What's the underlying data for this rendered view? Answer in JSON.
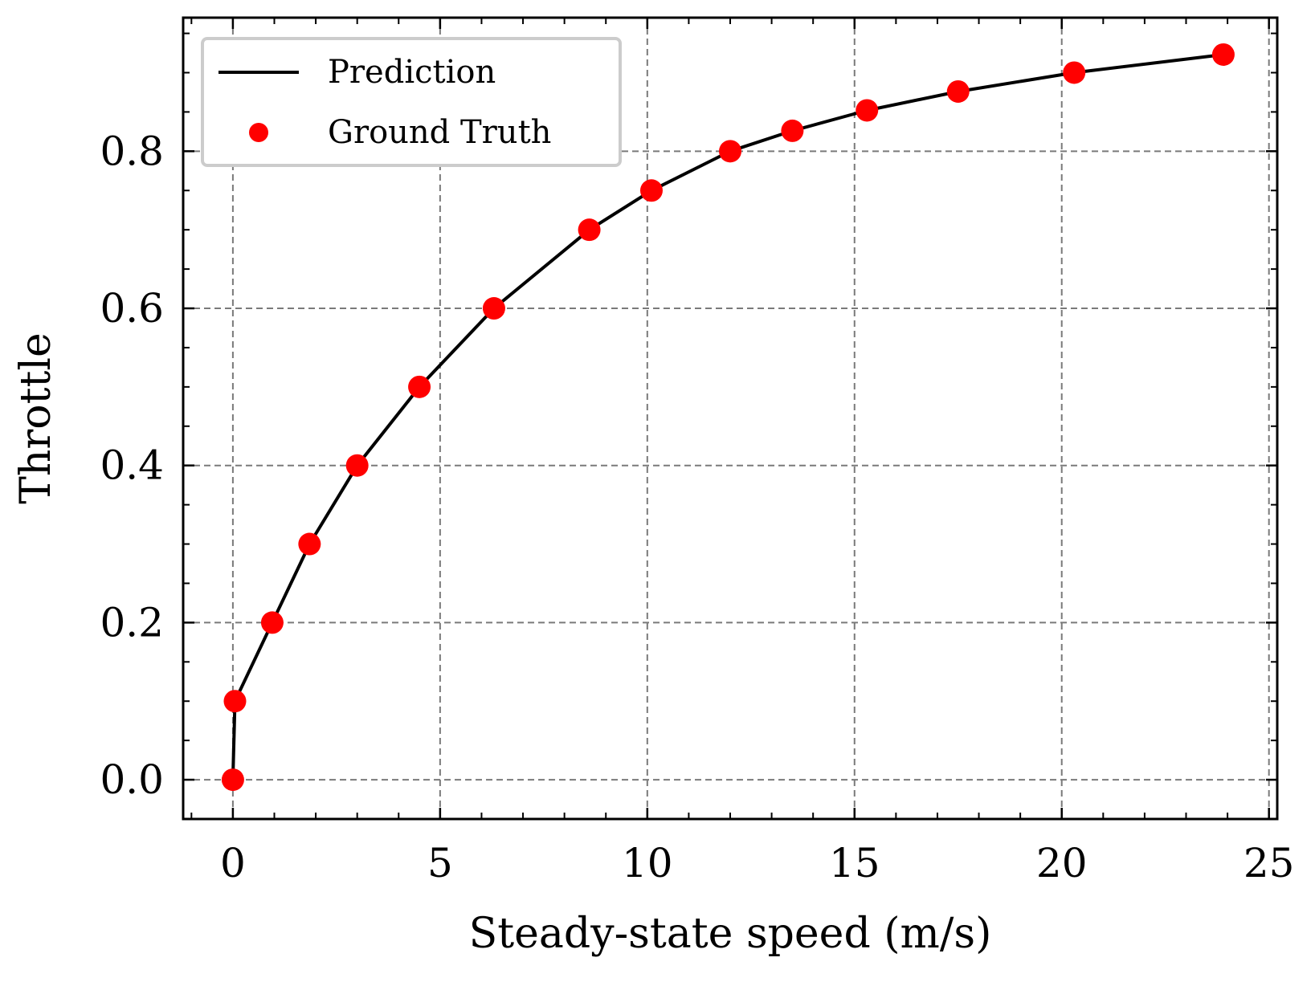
{
  "chart_data": {
    "type": "line",
    "xlabel": "Steady-state speed (m/s)",
    "ylabel": "Throttle",
    "xlim": [
      -1.2,
      25.2
    ],
    "ylim": [
      -0.05,
      0.97
    ],
    "x_ticks": [
      0,
      5,
      10,
      15,
      20,
      25
    ],
    "x_tick_labels": [
      "0",
      "5",
      "10",
      "15",
      "20",
      "25"
    ],
    "y_ticks": [
      0.0,
      0.2,
      0.4,
      0.6,
      0.8
    ],
    "y_tick_labels": [
      "0.0",
      "0.2",
      "0.4",
      "0.6",
      "0.8"
    ],
    "grid": true,
    "legend_position": "top-left",
    "series": [
      {
        "name": "Prediction",
        "kind": "line",
        "color": "#000000",
        "x": [
          0.0,
          0.05,
          0.95,
          1.85,
          3.0,
          4.5,
          6.3,
          8.6,
          10.1,
          12.0,
          13.5,
          15.3,
          17.5,
          20.3,
          23.9
        ],
        "y": [
          0.0,
          0.1,
          0.2,
          0.3,
          0.4,
          0.5,
          0.6,
          0.7,
          0.75,
          0.8,
          0.826,
          0.852,
          0.876,
          0.9,
          0.923
        ]
      },
      {
        "name": "Ground Truth",
        "kind": "scatter",
        "color": "#ff0000",
        "x": [
          0.0,
          0.05,
          0.95,
          1.85,
          3.0,
          4.5,
          6.3,
          8.6,
          10.1,
          12.0,
          13.5,
          15.3,
          17.5,
          20.3,
          23.9
        ],
        "y": [
          0.0,
          0.1,
          0.2,
          0.3,
          0.4,
          0.5,
          0.6,
          0.7,
          0.75,
          0.8,
          0.826,
          0.852,
          0.876,
          0.9,
          0.923
        ]
      }
    ]
  }
}
